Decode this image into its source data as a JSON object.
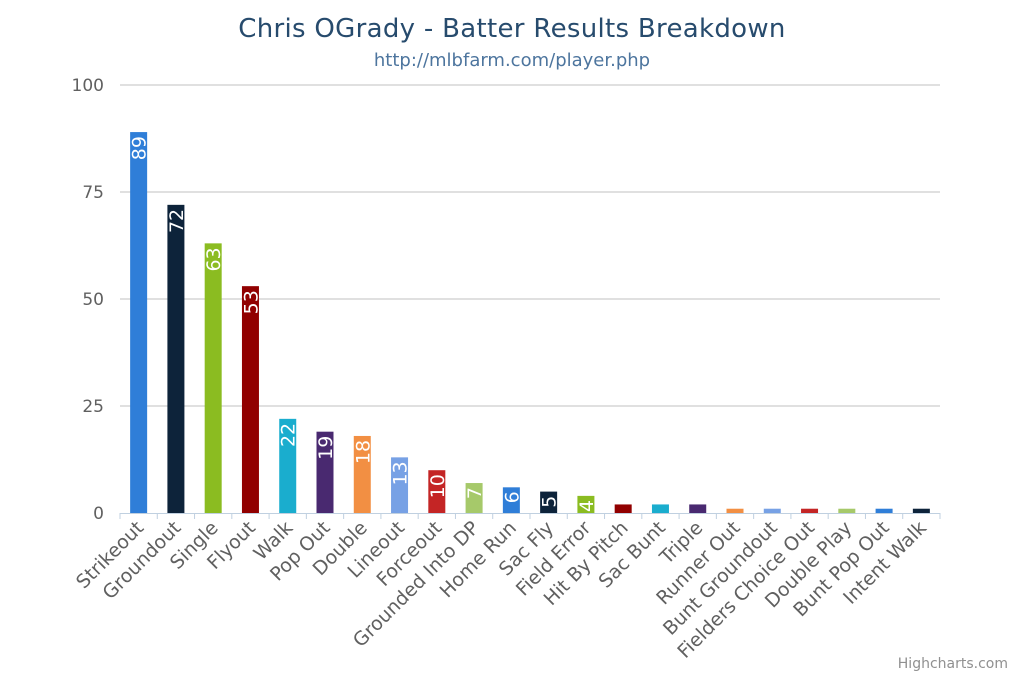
{
  "chart_data": {
    "type": "bar",
    "title": "Chris OGrady - Batter Results Breakdown",
    "subtitle": "http://mlbfarm.com/player.php",
    "credits": "Highcharts.com",
    "xlabel": "",
    "ylabel": "",
    "ylim": [
      0,
      100
    ],
    "yticks": [
      0,
      25,
      50,
      75,
      100
    ],
    "grid": true,
    "legend": "none",
    "categories": [
      "Strikeout",
      "Groundout",
      "Single",
      "Flyout",
      "Walk",
      "Pop Out",
      "Double",
      "Lineout",
      "Forceout",
      "Grounded Into DP",
      "Home Run",
      "Sac Fly",
      "Field Error",
      "Hit By Pitch",
      "Sac Bunt",
      "Triple",
      "Runner Out",
      "Bunt Groundout",
      "Fielders Choice Out",
      "Double Play",
      "Bunt Pop Out",
      "Intent Walk"
    ],
    "values": [
      89,
      72,
      63,
      53,
      22,
      19,
      18,
      13,
      10,
      7,
      6,
      5,
      4,
      2,
      2,
      2,
      1,
      1,
      1,
      1,
      1,
      1
    ],
    "colors": [
      "#2f7ed8",
      "#0d233a",
      "#8bbc21",
      "#910000",
      "#1aadce",
      "#492970",
      "#f28f43",
      "#77a1e5",
      "#c42525",
      "#a6c96a",
      "#2f7ed8",
      "#0d233a",
      "#8bbc21",
      "#910000",
      "#1aadce",
      "#492970",
      "#f28f43",
      "#77a1e5",
      "#c42525",
      "#a6c96a",
      "#2f7ed8",
      "#0d233a"
    ],
    "data_label_color": "#ffffff"
  }
}
